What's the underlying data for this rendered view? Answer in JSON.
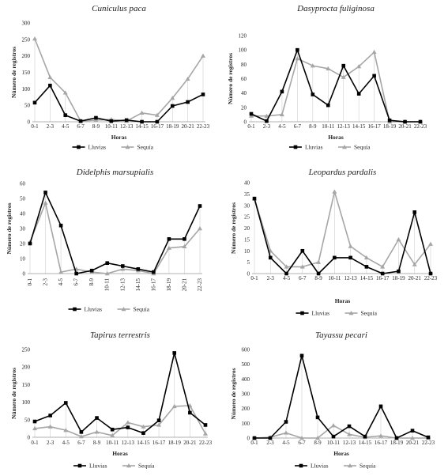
{
  "chart_data": [
    {
      "type": "line",
      "title": "Cuniculus paca",
      "xlabel": "Horas",
      "ylabel": "Número de registros",
      "ylim": [
        0,
        300
      ],
      "yticks": [
        "0",
        "50",
        "100",
        "150",
        "200",
        "250",
        "300"
      ],
      "categories": [
        "0-1",
        "2-3",
        "4-5",
        "6-7",
        "8-9",
        "10-11",
        "12-13",
        "14-15",
        "16-17",
        "18-19",
        "20-21",
        "22-23"
      ],
      "series": [
        {
          "name": "Lluvias",
          "color": "#000000",
          "marker": "square",
          "values": [
            58,
            110,
            20,
            2,
            12,
            2,
            5,
            0,
            0,
            48,
            60,
            83
          ]
        },
        {
          "name": "Sequía",
          "color": "#a6a6a6",
          "marker": "triangle",
          "values": [
            252,
            135,
            88,
            2,
            5,
            7,
            2,
            27,
            20,
            72,
            130,
            200
          ]
        }
      ],
      "legend": "bottom"
    },
    {
      "type": "line",
      "title": "Dasyprocta fuliginosa",
      "xlabel": "Horas",
      "ylabel": "Número de registros",
      "ylim": [
        0,
        120
      ],
      "yticks": [
        "0",
        "20",
        "40",
        "60",
        "80",
        "100",
        "120"
      ],
      "categories": [
        "0-1",
        "2-3",
        "4-5",
        "6-7",
        "8-9",
        "10-11",
        "12-13",
        "14-15",
        "16-17",
        "18-19",
        "20-21",
        "22-23"
      ],
      "series": [
        {
          "name": "Lluvias",
          "color": "#000000",
          "marker": "square",
          "values": [
            11,
            1,
            42,
            100,
            38,
            23,
            78,
            39,
            64,
            2,
            0,
            0
          ]
        },
        {
          "name": "Sequía",
          "color": "#a6a6a6",
          "marker": "triangle",
          "values": [
            8,
            8,
            10,
            88,
            78,
            74,
            62,
            77,
            97,
            0,
            0,
            0
          ]
        }
      ],
      "legend": "bottom"
    },
    {
      "type": "line",
      "title": "Didelphis marsupialis",
      "xlabel": "",
      "ylabel": "Número de registros",
      "ylim": [
        0,
        60
      ],
      "yticks": [
        "0",
        "10",
        "20",
        "30",
        "40",
        "50",
        "60"
      ],
      "categories": [
        "0-1",
        "2-3",
        "4-5",
        "6-7",
        "8-9",
        "10-11",
        "12-13",
        "14-15",
        "16-17",
        "18-19",
        "20-21",
        "22-23"
      ],
      "series": [
        {
          "name": "Lluvias",
          "color": "#000000",
          "marker": "square",
          "values": [
            20,
            54,
            32,
            0,
            2,
            7,
            5,
            3,
            1,
            23,
            23,
            45
          ]
        },
        {
          "name": "Sequía",
          "color": "#a6a6a6",
          "marker": "triangle",
          "values": [
            21,
            47,
            1,
            3,
            1,
            0,
            3,
            2,
            0,
            17,
            18,
            30
          ]
        }
      ],
      "legend": "bottom"
    },
    {
      "type": "line",
      "title": "Leopardus pardalis",
      "xlabel": "Horas",
      "ylabel": "Número de registros",
      "ylim": [
        0,
        40
      ],
      "yticks": [
        "0",
        "5",
        "10",
        "15",
        "20",
        "25",
        "30",
        "35",
        "40"
      ],
      "categories": [
        "0-1",
        "2-3",
        "4-5",
        "6-7",
        "8-9",
        "10-11",
        "12-13",
        "14-15",
        "16-17",
        "18-19",
        "20-21",
        "22-23"
      ],
      "series": [
        {
          "name": "Lluvias",
          "color": "#000000",
          "marker": "square",
          "values": [
            33,
            7,
            0,
            10,
            0,
            7,
            7,
            3,
            0,
            1,
            27,
            0
          ]
        },
        {
          "name": "Sequía",
          "color": "#a6a6a6",
          "marker": "triangle",
          "values": [
            33,
            10,
            3,
            3,
            5,
            36,
            12,
            7,
            3,
            15,
            4,
            13
          ]
        }
      ],
      "legend": "bottom"
    },
    {
      "type": "line",
      "title": "Tapirus terrestris",
      "xlabel": "Horas",
      "ylabel": "Número de registros",
      "ylim": [
        0,
        250
      ],
      "yticks": [
        "0",
        "50",
        "100",
        "150",
        "200",
        "250"
      ],
      "categories": [
        "0-1",
        "2-3",
        "4-5",
        "6-7",
        "8-9",
        "10-11",
        "12-13",
        "14-15",
        "16-17",
        "18-19",
        "20-21",
        "22-23"
      ],
      "series": [
        {
          "name": "Lluvias",
          "color": "#000000",
          "marker": "square",
          "values": [
            45,
            62,
            98,
            15,
            55,
            22,
            28,
            12,
            48,
            240,
            70,
            35
          ]
        },
        {
          "name": "Sequía",
          "color": "#a6a6a6",
          "marker": "triangle",
          "values": [
            25,
            30,
            20,
            2,
            15,
            5,
            42,
            30,
            35,
            88,
            90,
            10
          ]
        }
      ],
      "legend": "bottom"
    },
    {
      "type": "line",
      "title": "Tayassu pecari",
      "xlabel": "Horas",
      "ylabel": "Número de registros",
      "ylim": [
        0,
        600
      ],
      "yticks": [
        "0",
        "100",
        "200",
        "300",
        "400",
        "500",
        "600"
      ],
      "categories": [
        "0-1",
        "2-3",
        "4-5",
        "6-7",
        "8-9",
        "10-11",
        "12-13",
        "14-15",
        "16-17",
        "18-19",
        "20-21",
        "22-23"
      ],
      "series": [
        {
          "name": "Lluvias",
          "color": "#000000",
          "marker": "square",
          "values": [
            0,
            0,
            110,
            558,
            140,
            10,
            80,
            10,
            215,
            0,
            50,
            5
          ]
        },
        {
          "name": "Sequía",
          "color": "#a6a6a6",
          "marker": "triangle",
          "values": [
            0,
            5,
            35,
            0,
            0,
            85,
            25,
            5,
            15,
            0,
            0,
            0
          ]
        }
      ],
      "legend": "bottom"
    }
  ]
}
